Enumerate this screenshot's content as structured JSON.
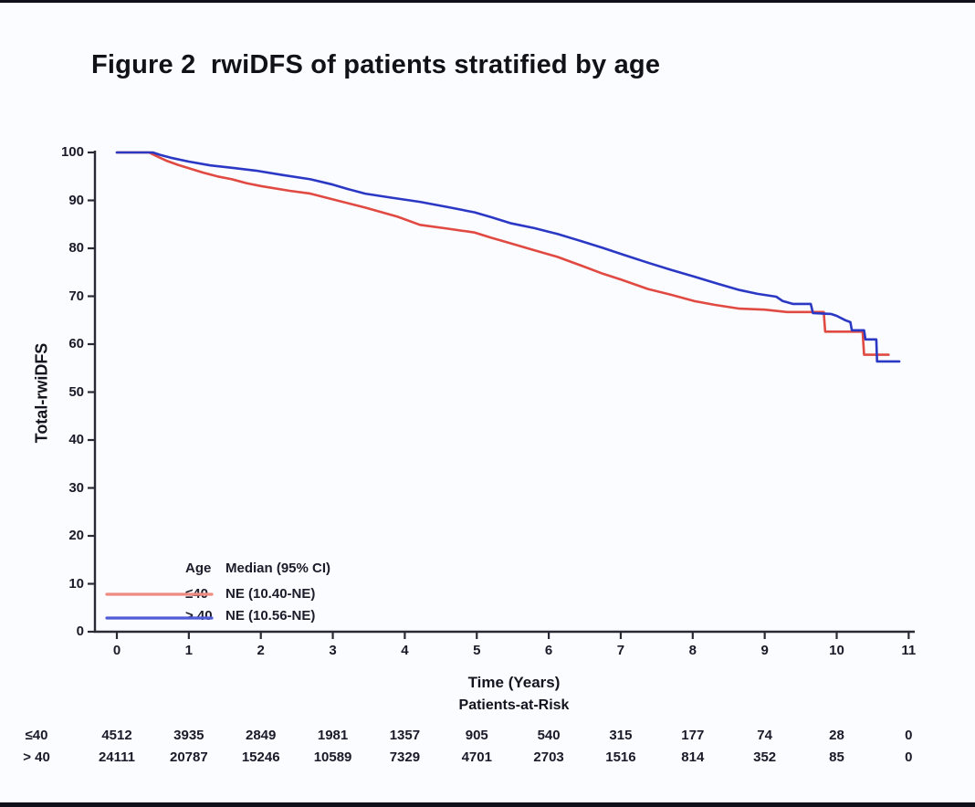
{
  "title": "Figure 2  rwiDFS of patients stratified by age",
  "frame": {
    "bar_color": "#10101a",
    "background": "#fbfcff"
  },
  "axis_color": "#2a2a35",
  "chart_data": {
    "type": "line",
    "subtype": "kaplan-meier-step",
    "title": "Figure 2  rwiDFS of patients stratified by age",
    "xlabel": "Time (Years)",
    "ylabel": "Total-rwiDFS",
    "xlim": [
      0,
      11
    ],
    "ylim": [
      0,
      100
    ],
    "grid": false,
    "x_ticks": [
      0,
      1,
      2,
      3,
      4,
      5,
      6,
      7,
      8,
      9,
      10,
      11
    ],
    "y_ticks": [
      0,
      10,
      20,
      30,
      40,
      50,
      60,
      70,
      80,
      90,
      100
    ],
    "legend": {
      "position": "lower-left-inside",
      "header_age": "Age",
      "header_median": "Median (95% CI)",
      "entries": [
        {
          "label": "≤40",
          "median": "NE (10.40-NE)",
          "swatch_color": "#ef8a80"
        },
        {
          "label": "> 40",
          "median": "NE (10.56-NE)",
          "swatch_color": "#4f5cd6"
        }
      ]
    },
    "series": [
      {
        "name": "≤40",
        "color": "#e04a42",
        "points": [
          [
            0,
            100
          ],
          [
            0.45,
            100
          ],
          [
            0.5,
            99.6
          ],
          [
            0.6,
            98.9
          ],
          [
            0.7,
            98.2
          ],
          [
            0.85,
            97.4
          ],
          [
            1.0,
            96.7
          ],
          [
            1.2,
            95.8
          ],
          [
            1.4,
            95.0
          ],
          [
            1.6,
            94.4
          ],
          [
            1.8,
            93.6
          ],
          [
            2.0,
            93.0
          ],
          [
            2.4,
            92.0
          ],
          [
            2.69,
            91.4
          ],
          [
            3.0,
            90.2
          ],
          [
            3.45,
            88.5
          ],
          [
            3.9,
            86.6
          ],
          [
            4.21,
            84.9
          ],
          [
            4.6,
            84.1
          ],
          [
            4.97,
            83.3
          ],
          [
            5.2,
            82.2
          ],
          [
            5.48,
            81.0
          ],
          [
            5.8,
            79.6
          ],
          [
            6.12,
            78.2
          ],
          [
            6.45,
            76.4
          ],
          [
            6.75,
            74.7
          ],
          [
            7.0,
            73.5
          ],
          [
            7.38,
            71.5
          ],
          [
            7.7,
            70.3
          ],
          [
            8.02,
            69.0
          ],
          [
            8.3,
            68.2
          ],
          [
            8.65,
            67.4
          ],
          [
            9.0,
            67.2
          ],
          [
            9.31,
            66.7
          ],
          [
            9.82,
            66.7
          ],
          [
            9.84,
            62.6
          ],
          [
            10.36,
            62.6
          ],
          [
            10.38,
            57.8
          ],
          [
            10.72,
            57.8
          ]
        ]
      },
      {
        "name": "> 40",
        "color": "#2b38c4",
        "points": [
          [
            0,
            100
          ],
          [
            0.5,
            100
          ],
          [
            0.6,
            99.5
          ],
          [
            0.75,
            98.9
          ],
          [
            1.0,
            98.1
          ],
          [
            1.3,
            97.3
          ],
          [
            1.6,
            96.8
          ],
          [
            1.93,
            96.2
          ],
          [
            2.3,
            95.3
          ],
          [
            2.69,
            94.4
          ],
          [
            3.0,
            93.3
          ],
          [
            3.2,
            92.4
          ],
          [
            3.45,
            91.4
          ],
          [
            3.8,
            90.6
          ],
          [
            4.21,
            89.7
          ],
          [
            4.6,
            88.6
          ],
          [
            4.97,
            87.5
          ],
          [
            5.2,
            86.5
          ],
          [
            5.48,
            85.2
          ],
          [
            5.8,
            84.2
          ],
          [
            6.12,
            83.0
          ],
          [
            6.45,
            81.5
          ],
          [
            6.75,
            80.1
          ],
          [
            7.05,
            78.6
          ],
          [
            7.38,
            77.0
          ],
          [
            7.7,
            75.5
          ],
          [
            8.02,
            74.1
          ],
          [
            8.35,
            72.6
          ],
          [
            8.65,
            71.3
          ],
          [
            8.9,
            70.5
          ],
          [
            9.16,
            69.9
          ],
          [
            9.25,
            69.0
          ],
          [
            9.39,
            68.4
          ],
          [
            9.64,
            68.4
          ],
          [
            9.67,
            66.5
          ],
          [
            9.92,
            66.3
          ],
          [
            10.0,
            65.9
          ],
          [
            10.12,
            65.0
          ],
          [
            10.19,
            64.6
          ],
          [
            10.21,
            62.9
          ],
          [
            10.38,
            62.9
          ],
          [
            10.4,
            61.0
          ],
          [
            10.55,
            61.0
          ],
          [
            10.56,
            56.4
          ],
          [
            10.87,
            56.4
          ]
        ]
      }
    ],
    "risk_table": {
      "title": "Patients-at-Risk",
      "times": [
        0,
        1,
        2,
        3,
        4,
        5,
        6,
        7,
        8,
        9,
        10,
        11
      ],
      "rows": [
        {
          "label": "≤40",
          "counts": [
            "4512",
            "3935",
            "2849",
            "1981",
            "1357",
            "905",
            "540",
            "315",
            "177",
            "74",
            "28",
            "0"
          ]
        },
        {
          "label": "> 40",
          "counts": [
            "24111",
            "20787",
            "15246",
            "10589",
            "7329",
            "4701",
            "2703",
            "1516",
            "814",
            "352",
            "85",
            "0"
          ]
        }
      ]
    }
  },
  "geometry_note": "x axis 0-11 years, y axis 0-100 percent"
}
